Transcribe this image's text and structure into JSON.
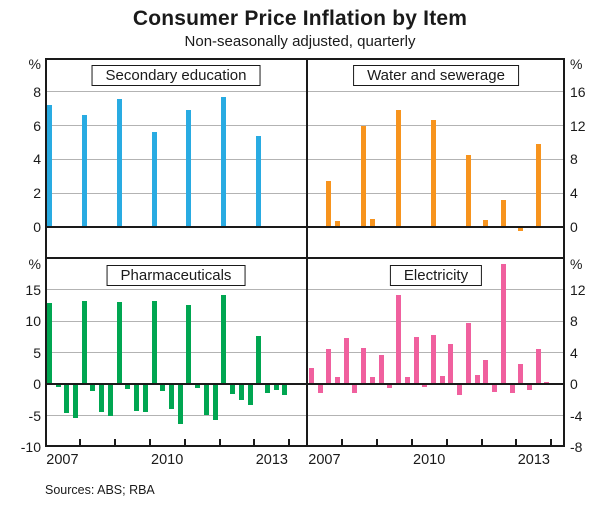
{
  "header": {
    "title": "Consumer Price Inflation by Item",
    "subtitle": "Non-seasonally adjusted, quarterly"
  },
  "footer": {
    "sources": "Sources: ABS; RBA"
  },
  "chart_data": {
    "type": "bar",
    "frequency": "quarterly",
    "categories": [
      "2007 Q1",
      "2007 Q2",
      "2007 Q3",
      "2007 Q4",
      "2008 Q1",
      "2008 Q2",
      "2008 Q3",
      "2008 Q4",
      "2009 Q1",
      "2009 Q2",
      "2009 Q3",
      "2009 Q4",
      "2010 Q1",
      "2010 Q2",
      "2010 Q3",
      "2010 Q4",
      "2011 Q1",
      "2011 Q2",
      "2011 Q3",
      "2011 Q4",
      "2012 Q1",
      "2012 Q2",
      "2012 Q3",
      "2012 Q4",
      "2013 Q1",
      "2013 Q2",
      "2013 Q3",
      "2013 Q4"
    ],
    "x_tick_years": [
      2008,
      2009,
      2010,
      2011,
      2012,
      2013,
      2014
    ],
    "x_axis_labels": [
      "2007",
      "2010",
      "2013"
    ],
    "x_axis_label_years": [
      2007,
      2010,
      2013
    ],
    "panels": [
      {
        "title": "Secondary education",
        "color": "#29ABE2",
        "axis_side": "left",
        "unit": "%",
        "ylim": [
          0,
          10
        ],
        "yticks": [
          8,
          6,
          4,
          2,
          0
        ],
        "gridlines": [
          2,
          4,
          6,
          8
        ],
        "values": [
          7.2,
          null,
          null,
          null,
          6.6,
          null,
          null,
          null,
          7.6,
          null,
          null,
          null,
          5.6,
          null,
          null,
          null,
          6.9,
          null,
          null,
          null,
          7.7,
          null,
          null,
          null,
          5.4,
          null,
          null,
          null
        ]
      },
      {
        "title": "Water and sewerage",
        "color": "#F7941E",
        "axis_side": "right",
        "unit": "%",
        "ylim": [
          0,
          20
        ],
        "yticks": [
          16,
          12,
          8,
          4,
          0
        ],
        "gridlines": [
          4,
          8,
          12,
          16
        ],
        "values": [
          null,
          null,
          5.5,
          0.7,
          null,
          null,
          12.0,
          0.9,
          null,
          null,
          13.8,
          null,
          null,
          null,
          12.7,
          null,
          null,
          null,
          8.5,
          null,
          0.8,
          null,
          3.2,
          null,
          -0.5,
          null,
          9.8,
          null
        ]
      },
      {
        "title": "Pharmaceuticals",
        "color": "#00A651",
        "axis_side": "left",
        "unit": "%",
        "ylim": [
          -10,
          20
        ],
        "yticks": [
          15,
          10,
          5,
          0,
          -5,
          -10
        ],
        "gridlines": [
          -5,
          5,
          10,
          15
        ],
        "values": [
          12.9,
          -0.5,
          -4.6,
          -5.4,
          13.1,
          -1.1,
          -4.4,
          -5.0,
          13.0,
          -0.8,
          -4.3,
          -4.5,
          13.2,
          -1.1,
          -4.0,
          -6.3,
          12.6,
          -0.7,
          -4.9,
          -5.7,
          14.2,
          -1.6,
          -2.6,
          -3.4,
          7.6,
          -1.5,
          -1.0,
          -1.8
        ]
      },
      {
        "title": "Electricity",
        "color": "#F0609E",
        "axis_side": "right",
        "unit": "%",
        "ylim": [
          -8,
          16
        ],
        "yticks": [
          12,
          8,
          4,
          0,
          -4,
          -8
        ],
        "gridlines": [
          -4,
          4,
          8,
          12
        ],
        "values": [
          2.0,
          -1.2,
          4.4,
          0.9,
          5.8,
          -1.2,
          4.6,
          0.9,
          3.7,
          -0.5,
          11.3,
          0.9,
          6.0,
          -0.4,
          6.2,
          1.0,
          5.1,
          -1.4,
          7.7,
          1.2,
          3.1,
          -1.0,
          15.3,
          -1.2,
          2.5,
          -0.8,
          4.4,
          0.2
        ]
      }
    ]
  }
}
